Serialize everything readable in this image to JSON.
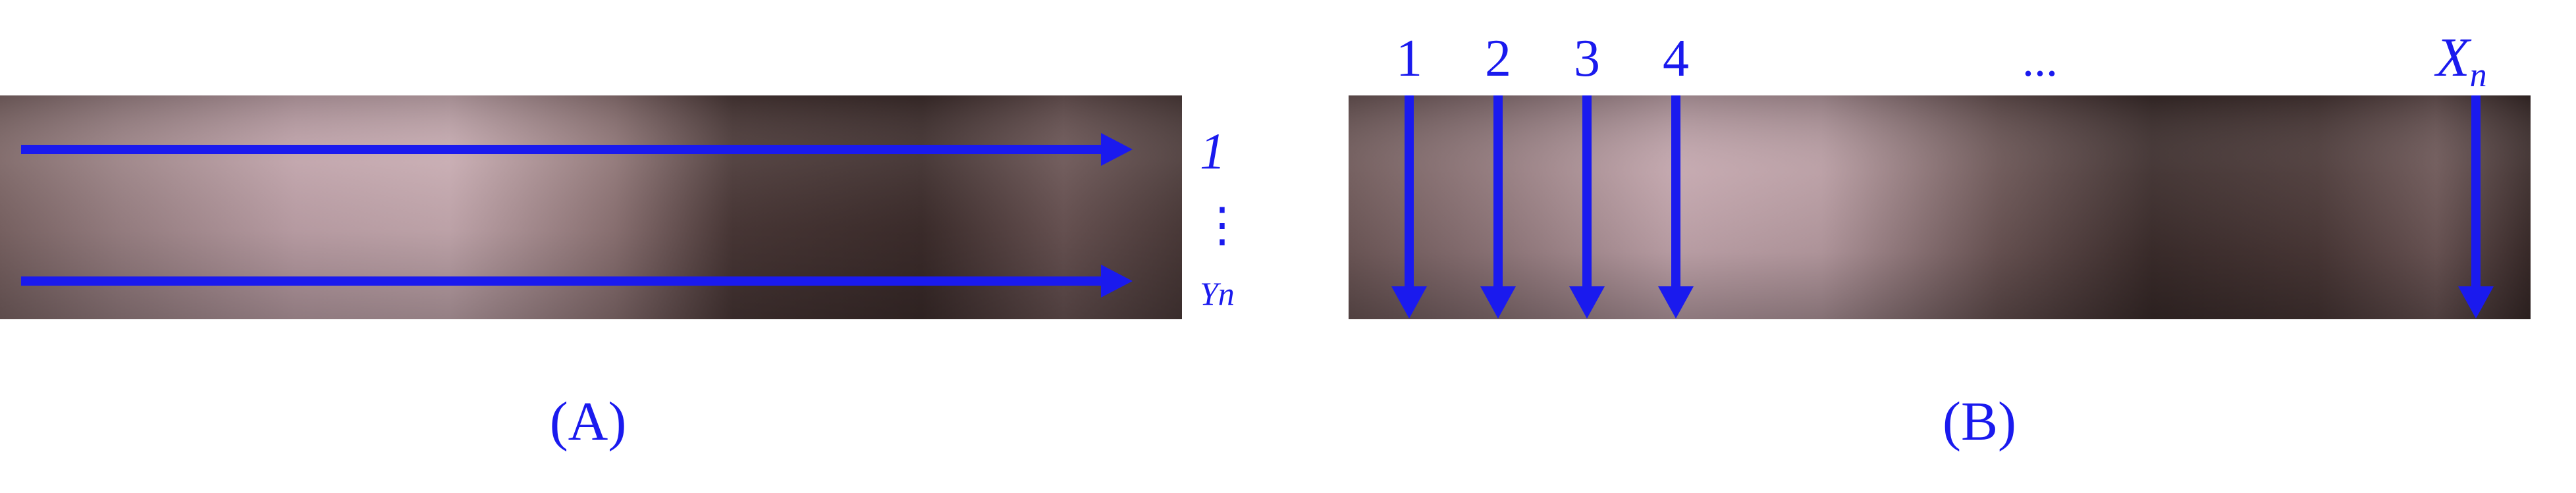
{
  "colors": {
    "accent": "#1a1aee",
    "strip_light": "#c4a8ae",
    "strip_dark": "#3e2e2d"
  },
  "panel_a": {
    "caption": "(A)",
    "row_label_first": "1",
    "row_label_ellipsis": "⋮",
    "row_label_last": "Yn"
  },
  "panel_b": {
    "caption": "(B)",
    "column_labels": [
      "1",
      "2",
      "3",
      "4"
    ],
    "column_ellipsis": "...",
    "last_column_main": "X",
    "last_column_subscript": "n"
  }
}
